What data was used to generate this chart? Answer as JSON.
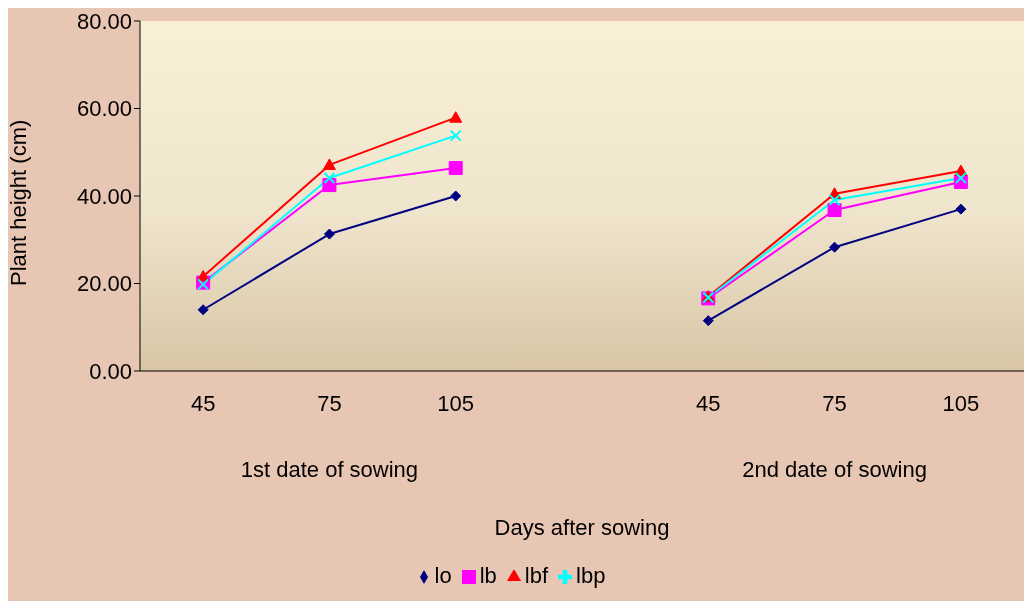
{
  "chart_data": {
    "type": "line",
    "xlabel": "Days after sowing",
    "ylabel": "Plant height (cm)",
    "categories": [
      "45",
      "75",
      "105",
      null,
      "45",
      "75",
      "105"
    ],
    "annotations": [
      "1st date of sowing",
      "2nd date of sowing"
    ],
    "ylim": [
      0,
      80
    ],
    "yticks": [
      {
        "value": 0,
        "label": "0.00"
      },
      {
        "value": 20,
        "label": "20.00"
      },
      {
        "value": 40,
        "label": "40.00"
      },
      {
        "value": 60,
        "label": "60.00"
      },
      {
        "value": 80,
        "label": "80.00"
      }
    ],
    "grid": false,
    "legend": "bottom",
    "line_style": "solid",
    "series": [
      {
        "name": "lo",
        "color": "#000080",
        "marker": "diamond",
        "values": [
          14.0,
          31.3,
          40.0,
          null,
          11.5,
          28.3,
          37.0
        ]
      },
      {
        "name": "lb",
        "color": "#ff00ff",
        "marker": "square",
        "values": [
          20.2,
          42.5,
          46.4,
          null,
          16.6,
          36.8,
          43.2
        ]
      },
      {
        "name": "lbf",
        "color": "#ff0000",
        "marker": "triangle",
        "values": [
          21.6,
          47.1,
          57.9,
          null,
          17.0,
          40.5,
          45.7
        ]
      },
      {
        "name": "lbp",
        "color": "#00ffff",
        "marker": "cross",
        "values": [
          19.8,
          44.1,
          53.8,
          null,
          16.8,
          39.1,
          44.1
        ]
      }
    ]
  }
}
